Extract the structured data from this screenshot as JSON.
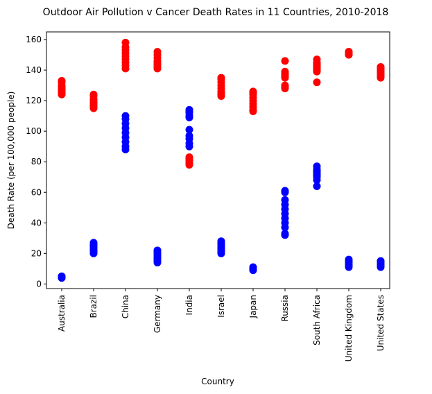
{
  "chart_data": {
    "type": "scatter",
    "title": "Outdoor Air Pollution v Cancer Death Rates in 11 Countries, 2010-2018",
    "xlabel": "Country",
    "ylabel": "Death Rate (per 100,000 people)",
    "categories": [
      "Australia",
      "Brazil",
      "China",
      "Germany",
      "India",
      "Israel",
      "Japan",
      "Russia",
      "South Africa",
      "United Kingdom",
      "United States"
    ],
    "ylim": [
      -3,
      165
    ],
    "yticks": [
      0,
      20,
      40,
      60,
      80,
      100,
      120,
      140,
      160
    ],
    "grid": false,
    "series": [
      {
        "color": "#ff0000",
        "values": [
          [
            124,
            125,
            126,
            127,
            128,
            129,
            130,
            132,
            133
          ],
          [
            115,
            116,
            117,
            118,
            119,
            120,
            121,
            123,
            124
          ],
          [
            141,
            143,
            145,
            147,
            149,
            151,
            153,
            155,
            158
          ],
          [
            141,
            142,
            143,
            144,
            145,
            146,
            148,
            150,
            152
          ],
          [
            78,
            79,
            80,
            81,
            82,
            83
          ],
          [
            123,
            124,
            125,
            126,
            128,
            130,
            132,
            134,
            135
          ],
          [
            113,
            114,
            116,
            118,
            120,
            122,
            124,
            125,
            126
          ],
          [
            128,
            129,
            130,
            135,
            136,
            137,
            138,
            139,
            146
          ],
          [
            132,
            139,
            140,
            141,
            142,
            143,
            144,
            145,
            147
          ],
          [
            150,
            150,
            151,
            151,
            152,
            152
          ],
          [
            135,
            136,
            137,
            138,
            139,
            140,
            141,
            142,
            142
          ]
        ]
      },
      {
        "color": "#0000ff",
        "values": [
          [
            4,
            4,
            5,
            5
          ],
          [
            20,
            21,
            22,
            23,
            24,
            25,
            26,
            27
          ],
          [
            88,
            90,
            93,
            96,
            99,
            102,
            105,
            108,
            110
          ],
          [
            14,
            15,
            16,
            17,
            18,
            19,
            20,
            21,
            22
          ],
          [
            90,
            92,
            95,
            97,
            101,
            109,
            110,
            112,
            113,
            114
          ],
          [
            20,
            21,
            22,
            23,
            24,
            25,
            26,
            27,
            28
          ],
          [
            9,
            10,
            11
          ],
          [
            32,
            33,
            37,
            40,
            43,
            46,
            49,
            52,
            55,
            60,
            61
          ],
          [
            64,
            68,
            70,
            71,
            72,
            73,
            74,
            75,
            77
          ],
          [
            11,
            12,
            13,
            14,
            15,
            16
          ],
          [
            11,
            12,
            13,
            14,
            15,
            15
          ]
        ]
      }
    ]
  }
}
